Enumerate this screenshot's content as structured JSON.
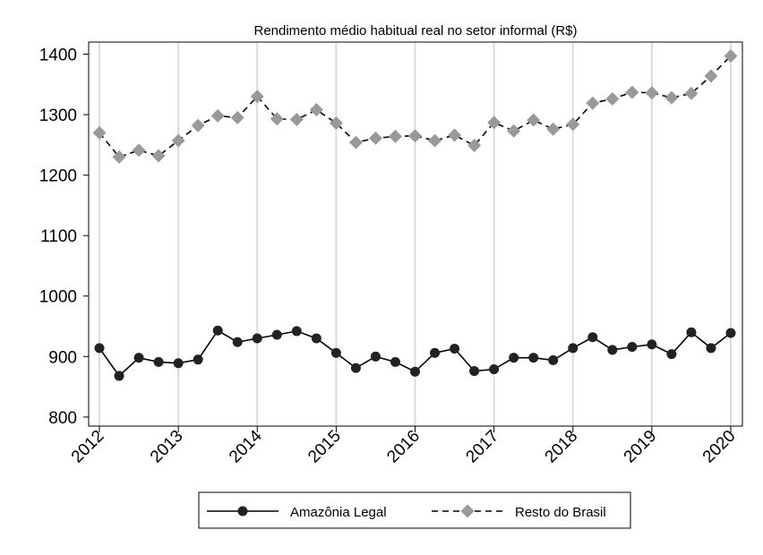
{
  "chart_data": {
    "type": "line",
    "title": "Rendimento médio habitual real no setor informal (R$)",
    "xlabel": "",
    "ylabel": "",
    "x_tick_labels": [
      "2012",
      "2013",
      "2014",
      "2015",
      "2016",
      "2017",
      "2018",
      "2019",
      "2020"
    ],
    "y_tick_labels": [
      "800",
      "900",
      "1000",
      "1100",
      "1200",
      "1300",
      "1400"
    ],
    "y_ticks": [
      800,
      900,
      1000,
      1100,
      1200,
      1300,
      1400
    ],
    "xlim": [
      2012,
      2020
    ],
    "ylim": [
      785,
      1420
    ],
    "grid": "vertical",
    "legend_position": "bottom",
    "x": [
      2012.0,
      2012.25,
      2012.5,
      2012.75,
      2013.0,
      2013.25,
      2013.5,
      2013.75,
      2014.0,
      2014.25,
      2014.5,
      2014.75,
      2015.0,
      2015.25,
      2015.5,
      2015.75,
      2016.0,
      2016.25,
      2016.5,
      2016.75,
      2017.0,
      2017.25,
      2017.5,
      2017.75,
      2018.0,
      2018.25,
      2018.5,
      2018.75,
      2019.0,
      2019.25,
      2019.5,
      2019.75,
      2020.0
    ],
    "series": [
      {
        "name": "Amazônia Legal",
        "color": "#222222",
        "marker": "circle",
        "line": "solid",
        "values": [
          914,
          868,
          898,
          891,
          889,
          895,
          943,
          924,
          930,
          936,
          942,
          930,
          906,
          881,
          900,
          891,
          875,
          906,
          913,
          876,
          879,
          898,
          898,
          894,
          914,
          932,
          911,
          916,
          920,
          904,
          940,
          914,
          939
        ]
      },
      {
        "name": "Resto do Brasil",
        "color": "#999999",
        "marker": "diamond",
        "line": "dashed",
        "values": [
          1270,
          1230,
          1241,
          1232,
          1257,
          1282,
          1298,
          1295,
          1330,
          1293,
          1292,
          1308,
          1286,
          1254,
          1261,
          1264,
          1265,
          1257,
          1266,
          1249,
          1287,
          1273,
          1291,
          1276,
          1284,
          1319,
          1326,
          1337,
          1336,
          1328,
          1335,
          1364,
          1397
        ]
      }
    ]
  }
}
